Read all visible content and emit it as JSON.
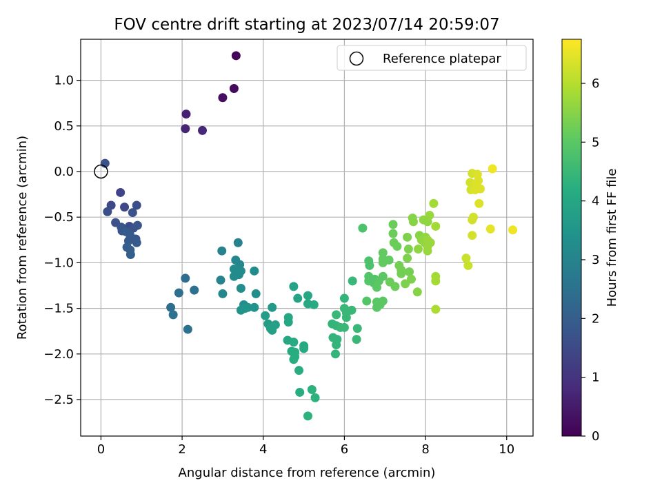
{
  "chart_data": {
    "type": "scatter",
    "title": "FOV centre drift starting at 2023/07/14 20:59:07",
    "xlabel": "Angular distance from reference (arcmin)",
    "ylabel": "Rotation from reference (arcmin)",
    "xlim": [
      -0.5,
      10.65
    ],
    "ylim": [
      -2.9,
      1.45
    ],
    "xticks": [
      0,
      2,
      4,
      6,
      8,
      10
    ],
    "xtick_labels": [
      "0",
      "2",
      "4",
      "6",
      "8",
      "10"
    ],
    "yticks": [
      1.0,
      0.5,
      0.0,
      -0.5,
      -1.0,
      -1.5,
      -2.0,
      -2.5
    ],
    "ytick_labels": [
      "1.0",
      "0.5",
      "0.0",
      "−0.5",
      "−1.0",
      "−1.5",
      "−2.0",
      "−2.5"
    ],
    "grid": true,
    "legend": {
      "position": "top-right",
      "entries": [
        "Reference platepar"
      ]
    },
    "reference_point": {
      "x": 0.0,
      "y": 0.0
    },
    "colorbar": {
      "label": "Hours from first FF file",
      "colormap": "viridis",
      "range": [
        0,
        6.75
      ],
      "ticks": [
        0,
        1,
        2,
        3,
        4,
        5,
        6
      ],
      "tick_labels": [
        "0",
        "1",
        "2",
        "3",
        "4",
        "5",
        "6"
      ]
    },
    "points": [
      {
        "x": 3.33,
        "y": 1.27,
        "c": 0.1
      },
      {
        "x": 3.28,
        "y": 0.91,
        "c": 0.2
      },
      {
        "x": 3.0,
        "y": 0.81,
        "c": 0.25
      },
      {
        "x": 2.1,
        "y": 0.63,
        "c": 0.6
      },
      {
        "x": 2.08,
        "y": 0.47,
        "c": 0.7
      },
      {
        "x": 2.5,
        "y": 0.45,
        "c": 0.75
      },
      {
        "x": 0.1,
        "y": 0.09,
        "c": 1.7
      },
      {
        "x": 0.48,
        "y": -0.23,
        "c": 1.4
      },
      {
        "x": 0.25,
        "y": -0.37,
        "c": 1.5
      },
      {
        "x": 0.58,
        "y": -0.39,
        "c": 1.5
      },
      {
        "x": 0.88,
        "y": -0.37,
        "c": 1.6
      },
      {
        "x": 0.16,
        "y": -0.44,
        "c": 1.6
      },
      {
        "x": 0.78,
        "y": -0.45,
        "c": 1.7
      },
      {
        "x": 0.36,
        "y": -0.56,
        "c": 1.7
      },
      {
        "x": 0.5,
        "y": -0.61,
        "c": 1.8
      },
      {
        "x": 0.9,
        "y": -0.59,
        "c": 1.8
      },
      {
        "x": 0.7,
        "y": -0.6,
        "c": 1.5
      },
      {
        "x": 0.8,
        "y": -0.62,
        "c": 1.7
      },
      {
        "x": 0.52,
        "y": -0.65,
        "c": 1.8
      },
      {
        "x": 0.62,
        "y": -0.66,
        "c": 1.9
      },
      {
        "x": 0.72,
        "y": -0.7,
        "c": 1.9
      },
      {
        "x": 0.68,
        "y": -0.76,
        "c": 1.9
      },
      {
        "x": 0.86,
        "y": -0.74,
        "c": 1.8
      },
      {
        "x": 0.88,
        "y": -0.78,
        "c": 1.9
      },
      {
        "x": 0.64,
        "y": -0.83,
        "c": 2.0
      },
      {
        "x": 0.72,
        "y": -0.86,
        "c": 2.0
      },
      {
        "x": 0.73,
        "y": -0.91,
        "c": 2.0
      },
      {
        "x": 2.08,
        "y": -1.17,
        "c": 2.4
      },
      {
        "x": 2.3,
        "y": -1.3,
        "c": 2.5
      },
      {
        "x": 1.92,
        "y": -1.33,
        "c": 2.5
      },
      {
        "x": 1.72,
        "y": -1.49,
        "c": 2.4
      },
      {
        "x": 1.78,
        "y": -1.57,
        "c": 2.5
      },
      {
        "x": 2.14,
        "y": -1.73,
        "c": 2.5
      },
      {
        "x": 3.38,
        "y": -0.78,
        "c": 3.0
      },
      {
        "x": 2.98,
        "y": -0.87,
        "c": 3.0
      },
      {
        "x": 3.32,
        "y": -0.97,
        "c": 3.1
      },
      {
        "x": 3.42,
        "y": -1.02,
        "c": 3.1
      },
      {
        "x": 3.28,
        "y": -1.07,
        "c": 3.2
      },
      {
        "x": 3.45,
        "y": -1.09,
        "c": 3.2
      },
      {
        "x": 3.78,
        "y": -1.09,
        "c": 3.3
      },
      {
        "x": 3.28,
        "y": -1.15,
        "c": 3.2
      },
      {
        "x": 3.4,
        "y": -1.13,
        "c": 3.2
      },
      {
        "x": 2.95,
        "y": -1.19,
        "c": 3.0
      },
      {
        "x": 3.45,
        "y": -1.28,
        "c": 3.3
      },
      {
        "x": 3.82,
        "y": -1.34,
        "c": 3.3
      },
      {
        "x": 3.0,
        "y": -1.34,
        "c": 3.1
      },
      {
        "x": 3.52,
        "y": -1.46,
        "c": 3.3
      },
      {
        "x": 3.62,
        "y": -1.49,
        "c": 3.4
      },
      {
        "x": 3.78,
        "y": -1.49,
        "c": 3.4
      },
      {
        "x": 3.45,
        "y": -1.52,
        "c": 3.4
      },
      {
        "x": 3.55,
        "y": -1.5,
        "c": 3.5
      },
      {
        "x": 4.22,
        "y": -1.49,
        "c": 3.6
      },
      {
        "x": 4.05,
        "y": -1.58,
        "c": 3.7
      },
      {
        "x": 4.12,
        "y": -1.67,
        "c": 3.7
      },
      {
        "x": 4.3,
        "y": -1.68,
        "c": 3.8
      },
      {
        "x": 4.18,
        "y": -1.72,
        "c": 3.8
      },
      {
        "x": 4.22,
        "y": -1.74,
        "c": 3.8
      },
      {
        "x": 4.75,
        "y": -1.26,
        "c": 3.9
      },
      {
        "x": 4.85,
        "y": -1.39,
        "c": 3.9
      },
      {
        "x": 5.1,
        "y": -1.36,
        "c": 4.0
      },
      {
        "x": 5.1,
        "y": -1.45,
        "c": 4.1
      },
      {
        "x": 5.25,
        "y": -1.46,
        "c": 4.1
      },
      {
        "x": 4.62,
        "y": -1.6,
        "c": 4.0
      },
      {
        "x": 4.62,
        "y": -1.65,
        "c": 4.0
      },
      {
        "x": 4.6,
        "y": -1.85,
        "c": 4.0
      },
      {
        "x": 4.75,
        "y": -1.87,
        "c": 4.1
      },
      {
        "x": 5.0,
        "y": -1.91,
        "c": 4.1
      },
      {
        "x": 5.0,
        "y": -1.94,
        "c": 4.1
      },
      {
        "x": 4.7,
        "y": -1.97,
        "c": 4.1
      },
      {
        "x": 4.78,
        "y": -1.98,
        "c": 4.2
      },
      {
        "x": 4.78,
        "y": -2.03,
        "c": 4.2
      },
      {
        "x": 4.75,
        "y": -2.06,
        "c": 4.2
      },
      {
        "x": 4.88,
        "y": -2.18,
        "c": 4.2
      },
      {
        "x": 4.9,
        "y": -2.42,
        "c": 4.2
      },
      {
        "x": 5.2,
        "y": -2.39,
        "c": 4.3
      },
      {
        "x": 5.28,
        "y": -2.48,
        "c": 4.3
      },
      {
        "x": 5.1,
        "y": -2.68,
        "c": 4.3
      },
      {
        "x": 6.0,
        "y": -1.39,
        "c": 4.4
      },
      {
        "x": 6.2,
        "y": -1.2,
        "c": 4.5
      },
      {
        "x": 6.0,
        "y": -1.5,
        "c": 4.5
      },
      {
        "x": 6.05,
        "y": -1.55,
        "c": 4.5
      },
      {
        "x": 6.18,
        "y": -1.52,
        "c": 4.5
      },
      {
        "x": 5.8,
        "y": -1.57,
        "c": 4.5
      },
      {
        "x": 6.05,
        "y": -1.6,
        "c": 4.5
      },
      {
        "x": 5.7,
        "y": -1.67,
        "c": 4.4
      },
      {
        "x": 5.8,
        "y": -1.69,
        "c": 4.4
      },
      {
        "x": 5.9,
        "y": -1.71,
        "c": 4.5
      },
      {
        "x": 6.0,
        "y": -1.71,
        "c": 4.5
      },
      {
        "x": 6.32,
        "y": -1.72,
        "c": 4.5
      },
      {
        "x": 5.72,
        "y": -1.82,
        "c": 4.4
      },
      {
        "x": 5.82,
        "y": -1.84,
        "c": 4.4
      },
      {
        "x": 6.3,
        "y": -1.84,
        "c": 4.5
      },
      {
        "x": 5.8,
        "y": -1.9,
        "c": 4.4
      },
      {
        "x": 5.78,
        "y": -2.0,
        "c": 4.4
      },
      {
        "x": 6.45,
        "y": -0.62,
        "c": 4.8
      },
      {
        "x": 6.6,
        "y": -0.98,
        "c": 4.8
      },
      {
        "x": 6.62,
        "y": -1.03,
        "c": 4.8
      },
      {
        "x": 6.6,
        "y": -1.15,
        "c": 4.9
      },
      {
        "x": 6.75,
        "y": -1.18,
        "c": 4.9
      },
      {
        "x": 6.72,
        "y": -1.22,
        "c": 4.9
      },
      {
        "x": 6.85,
        "y": -1.2,
        "c": 5.0
      },
      {
        "x": 6.95,
        "y": -1.15,
        "c": 5.0
      },
      {
        "x": 6.6,
        "y": -1.2,
        "c": 4.9
      },
      {
        "x": 6.8,
        "y": -1.27,
        "c": 5.0
      },
      {
        "x": 6.55,
        "y": -1.42,
        "c": 4.9
      },
      {
        "x": 6.8,
        "y": -1.43,
        "c": 5.0
      },
      {
        "x": 6.95,
        "y": -1.42,
        "c": 5.0
      },
      {
        "x": 6.88,
        "y": -1.46,
        "c": 5.0
      },
      {
        "x": 6.8,
        "y": -1.49,
        "c": 5.0
      },
      {
        "x": 6.95,
        "y": -0.89,
        "c": 5.1
      },
      {
        "x": 6.95,
        "y": -0.96,
        "c": 5.1
      },
      {
        "x": 7.1,
        "y": -0.97,
        "c": 5.1
      },
      {
        "x": 6.95,
        "y": -1.0,
        "c": 5.1
      },
      {
        "x": 7.2,
        "y": -0.58,
        "c": 5.2
      },
      {
        "x": 7.2,
        "y": -0.68,
        "c": 5.2
      },
      {
        "x": 7.22,
        "y": -0.78,
        "c": 5.2
      },
      {
        "x": 7.3,
        "y": -0.82,
        "c": 5.2
      },
      {
        "x": 7.12,
        "y": -1.21,
        "c": 5.2
      },
      {
        "x": 7.25,
        "y": -1.26,
        "c": 5.2
      },
      {
        "x": 7.35,
        "y": -1.03,
        "c": 5.3
      },
      {
        "x": 7.4,
        "y": -1.08,
        "c": 5.3
      },
      {
        "x": 7.4,
        "y": -1.12,
        "c": 5.3
      },
      {
        "x": 7.6,
        "y": -1.1,
        "c": 5.3
      },
      {
        "x": 7.65,
        "y": -1.18,
        "c": 5.4
      },
      {
        "x": 7.5,
        "y": -1.23,
        "c": 5.4
      },
      {
        "x": 7.8,
        "y": -1.32,
        "c": 5.5
      },
      {
        "x": 7.55,
        "y": -0.72,
        "c": 5.4
      },
      {
        "x": 7.58,
        "y": -0.85,
        "c": 5.4
      },
      {
        "x": 7.55,
        "y": -0.95,
        "c": 5.4
      },
      {
        "x": 7.68,
        "y": -0.51,
        "c": 5.5
      },
      {
        "x": 7.7,
        "y": -0.55,
        "c": 5.5
      },
      {
        "x": 7.85,
        "y": -0.7,
        "c": 5.5
      },
      {
        "x": 7.82,
        "y": -0.85,
        "c": 5.6
      },
      {
        "x": 7.98,
        "y": -0.78,
        "c": 5.6
      },
      {
        "x": 7.9,
        "y": -0.75,
        "c": 5.6
      },
      {
        "x": 8.0,
        "y": -0.72,
        "c": 5.6
      },
      {
        "x": 8.05,
        "y": -0.75,
        "c": 5.7
      },
      {
        "x": 8.05,
        "y": -0.82,
        "c": 5.7
      },
      {
        "x": 8.12,
        "y": -0.78,
        "c": 5.7
      },
      {
        "x": 8.05,
        "y": -0.87,
        "c": 5.7
      },
      {
        "x": 7.95,
        "y": -0.53,
        "c": 5.6
      },
      {
        "x": 8.1,
        "y": -0.48,
        "c": 5.7
      },
      {
        "x": 8.05,
        "y": -0.55,
        "c": 5.6
      },
      {
        "x": 8.2,
        "y": -0.35,
        "c": 5.8
      },
      {
        "x": 8.25,
        "y": -0.6,
        "c": 5.8
      },
      {
        "x": 8.25,
        "y": -1.15,
        "c": 5.8
      },
      {
        "x": 8.25,
        "y": -1.2,
        "c": 5.8
      },
      {
        "x": 8.25,
        "y": -1.51,
        "c": 5.9
      },
      {
        "x": 9.15,
        "y": -0.02,
        "c": 6.3
      },
      {
        "x": 9.28,
        "y": -0.03,
        "c": 6.4
      },
      {
        "x": 9.65,
        "y": 0.03,
        "c": 6.6
      },
      {
        "x": 9.1,
        "y": -0.12,
        "c": 6.3
      },
      {
        "x": 9.3,
        "y": -0.1,
        "c": 6.4
      },
      {
        "x": 9.22,
        "y": -0.15,
        "c": 6.4
      },
      {
        "x": 9.12,
        "y": -0.2,
        "c": 6.3
      },
      {
        "x": 9.22,
        "y": -0.2,
        "c": 6.4
      },
      {
        "x": 9.35,
        "y": -0.19,
        "c": 6.4
      },
      {
        "x": 9.32,
        "y": -0.35,
        "c": 6.4
      },
      {
        "x": 9.18,
        "y": -0.5,
        "c": 6.3
      },
      {
        "x": 9.15,
        "y": -0.53,
        "c": 6.3
      },
      {
        "x": 9.6,
        "y": -0.63,
        "c": 6.5
      },
      {
        "x": 10.15,
        "y": -0.64,
        "c": 6.6
      },
      {
        "x": 9.15,
        "y": -0.7,
        "c": 6.3
      },
      {
        "x": 9.0,
        "y": -0.95,
        "c": 6.2
      },
      {
        "x": 9.05,
        "y": -1.03,
        "c": 6.2
      }
    ]
  }
}
